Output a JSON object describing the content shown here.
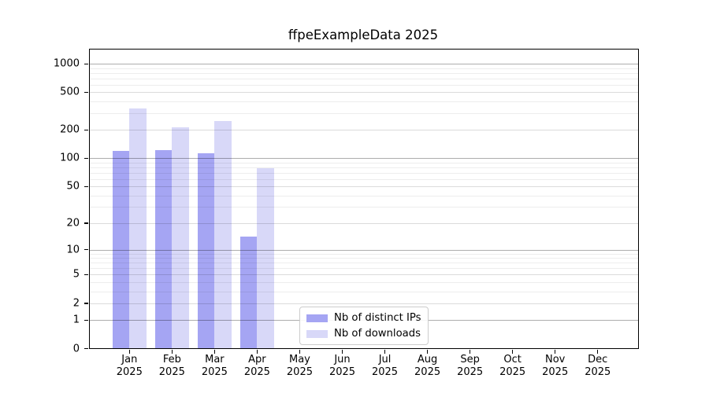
{
  "title": "ffpeExampleData 2025",
  "chart_data": {
    "type": "bar",
    "title": "ffpeExampleData 2025",
    "y_scale": "log-like (position proportional to log10(value+1))",
    "categories": [
      "Jan",
      "Feb",
      "Mar",
      "Apr",
      "May",
      "Jun",
      "Jul",
      "Aug",
      "Sep",
      "Oct",
      "Nov",
      "Dec"
    ],
    "x_tick_second_line": "2025",
    "series": [
      {
        "name": "Nb of distinct IPs",
        "color": "#a5a5f3",
        "values": [
          119,
          123,
          114,
          14,
          0,
          0,
          0,
          0,
          0,
          0,
          0,
          0
        ]
      },
      {
        "name": "Nb of downloads",
        "color": "#d8d8f8",
        "values": [
          340,
          213,
          246,
          78,
          0,
          0,
          0,
          0,
          0,
          0,
          0,
          0
        ]
      }
    ],
    "y_ticks": [
      0,
      1,
      2,
      5,
      10,
      20,
      50,
      100,
      200,
      500,
      1000
    ],
    "ylim": [
      0,
      1400
    ],
    "grid": "horizontal",
    "legend_position": "lower-center",
    "background_color": "#ffffff",
    "gridline_major_color": "#adadad",
    "gridline_minor_color": "#ededed"
  }
}
